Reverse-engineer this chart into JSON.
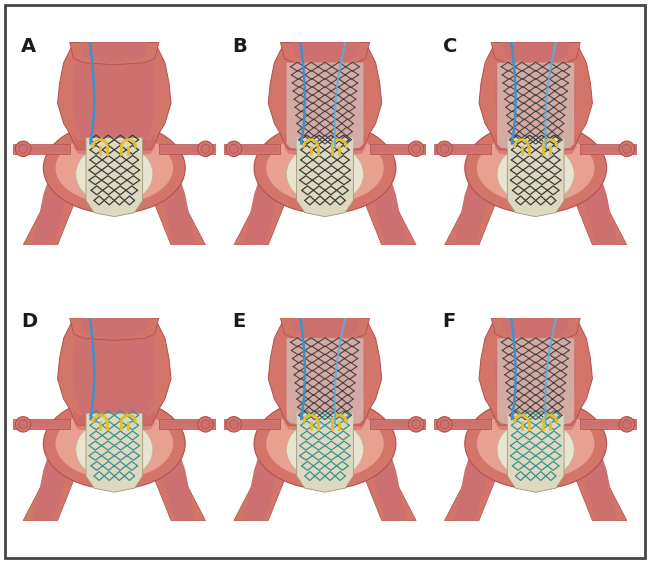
{
  "panels": [
    "A",
    "B",
    "C",
    "D",
    "E",
    "F"
  ],
  "label_fontsize": 14,
  "label_fontweight": "bold",
  "label_color": "#1a1a1a",
  "background_color": "#ffffff",
  "border_color": "#555555",
  "flesh_outer": "#d4756a",
  "flesh_mid": "#c96060",
  "flesh_inner": "#c87878",
  "flesh_lumen": "#b85858",
  "flesh_light": "#e8a090",
  "aorta_inner": "#cc7070",
  "aneurysm_wall": "#d07878",
  "graft_color": "#ddd8c0",
  "graft_inner": "#e8e4d0",
  "stent_dark": "#3a3a3a",
  "stent_teal": "#3a9090",
  "wire_blue": "#4090cc",
  "wire_blue2": "#5ab0e0",
  "wire_yellow": "#e0c030",
  "side_vessel": "#cc7060",
  "top_vessel": "#cc6868"
}
